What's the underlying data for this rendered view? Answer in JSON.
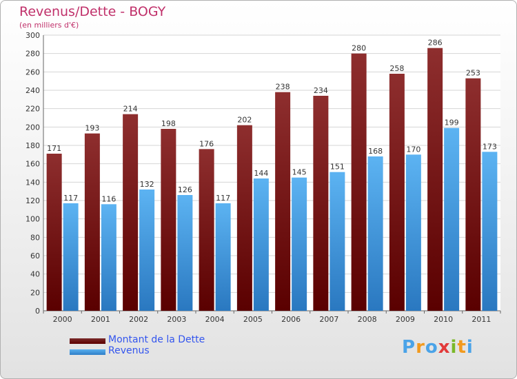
{
  "chart_data": {
    "type": "bar",
    "title": "Revenus/Dette - BOGY",
    "subtitle": "(en milliers d'€)",
    "categories": [
      "2000",
      "2001",
      "2002",
      "2003",
      "2004",
      "2005",
      "2006",
      "2007",
      "2008",
      "2009",
      "2010",
      "2011"
    ],
    "series": [
      {
        "name": "Montant de la Dette",
        "color": "#8b1a1a",
        "values": [
          171,
          193,
          214,
          198,
          176,
          202,
          238,
          234,
          280,
          258,
          286,
          253
        ]
      },
      {
        "name": "Revenus",
        "color": "#4aa3e8",
        "values": [
          117,
          116,
          132,
          126,
          117,
          144,
          145,
          151,
          168,
          170,
          199,
          173
        ]
      }
    ],
    "ylim": [
      0,
      300
    ],
    "yticks": [
      0,
      20,
      40,
      60,
      80,
      100,
      120,
      140,
      160,
      180,
      200,
      220,
      240,
      260,
      280,
      300
    ],
    "grid": true,
    "legend_position": "bottom-left"
  },
  "logo": {
    "letters": [
      "P",
      "r",
      "o",
      "x",
      "i",
      "t",
      "i"
    ],
    "colors": [
      "#4aa3e8",
      "#f29a1e",
      "#4aa3e8",
      "#e23a3a",
      "#7ab829",
      "#f29a1e",
      "#4aa3e8"
    ]
  }
}
